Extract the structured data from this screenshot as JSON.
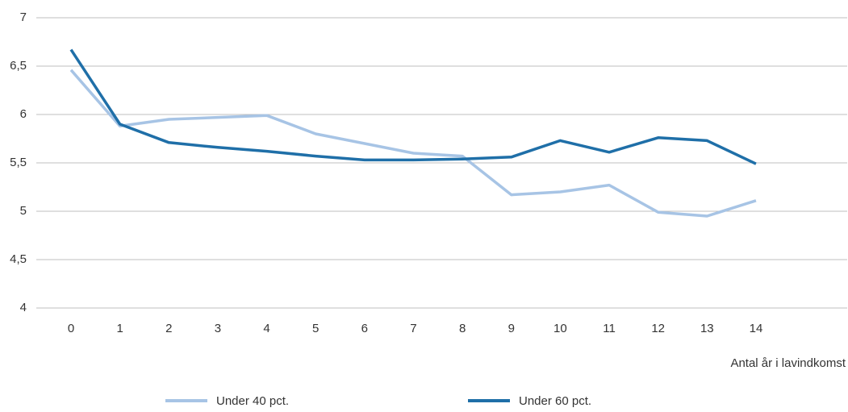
{
  "chart_data": {
    "type": "line",
    "x_label": "Antal år i lavindkomst",
    "categories": [
      "0",
      "1",
      "2",
      "3",
      "4",
      "5",
      "6",
      "7",
      "8",
      "9",
      "10",
      "11",
      "12",
      "13",
      "14"
    ],
    "series": [
      {
        "name": "Under 40 pct.",
        "color": "#a7c4e5",
        "values": [
          6.46,
          5.88,
          5.95,
          5.97,
          5.99,
          5.8,
          5.7,
          5.6,
          5.57,
          5.17,
          5.2,
          5.27,
          4.99,
          4.95,
          5.11
        ]
      },
      {
        "name": "Under 60 pct.",
        "color": "#1f6fa8",
        "values": [
          6.67,
          5.9,
          5.71,
          5.66,
          5.62,
          5.57,
          5.53,
          5.53,
          5.54,
          5.56,
          5.73,
          5.61,
          5.76,
          5.73,
          5.49
        ]
      }
    ],
    "ylim": [
      4,
      7
    ],
    "yticks": [
      4,
      {
        "value": 4.5,
        "label": "4,5"
      },
      5,
      {
        "value": 5.5,
        "label": "5,5"
      },
      6,
      {
        "value": 6.5,
        "label": "6,5"
      },
      7
    ],
    "grid": true,
    "legend": "bottom"
  }
}
